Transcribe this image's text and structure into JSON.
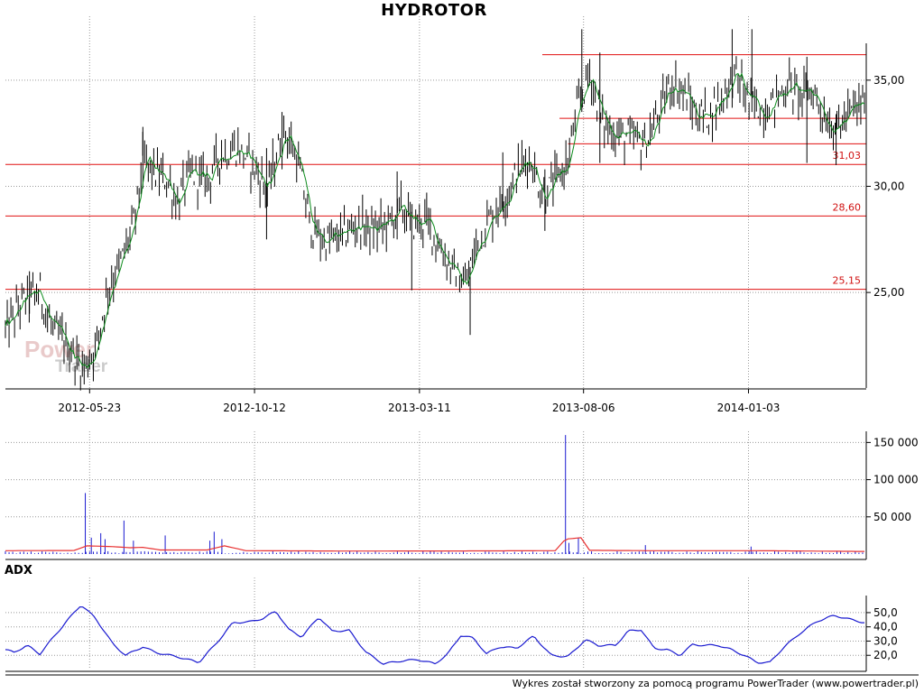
{
  "app": {
    "footer": "Wykres został stworzony za pomocą programu PowerTrader (www.powertrader.pl)",
    "watermark_line1": "Power",
    "watermark_line2": "Trader"
  },
  "chart_data": [
    {
      "type": "line",
      "title": "HYDROTOR",
      "x_dates": [
        "2012-05-23",
        "2012-10-12",
        "2013-03-11",
        "2013-08-06",
        "2014-01-03"
      ],
      "ylim": [
        20.5,
        37.5
      ],
      "yticks": [
        25.0,
        30.0,
        35.0
      ],
      "ytick_labels": [
        "25,00",
        "30,00",
        "35,00"
      ],
      "grid": true,
      "levels": [
        {
          "value": 31.03,
          "label": "31,03",
          "from_frac": 0.0
        },
        {
          "value": 28.6,
          "label": "28,60",
          "from_frac": 0.0
        },
        {
          "value": 25.15,
          "label": "25,15",
          "from_frac": 0.0
        },
        {
          "value": 36.2,
          "label": "",
          "from_frac": 0.625
        },
        {
          "value": 33.2,
          "label": "",
          "from_frac": 0.645
        },
        {
          "value": 32.0,
          "label": "",
          "from_frac": 0.655
        }
      ],
      "series": [
        {
          "price_anchors": [
            [
              0.0,
              23.2
            ],
            [
              0.02,
              24.6
            ],
            [
              0.04,
              25.0
            ],
            [
              0.055,
              23.2
            ],
            [
              0.07,
              22.6
            ],
            [
              0.09,
              21.4
            ],
            [
              0.105,
              22.4
            ],
            [
              0.12,
              25.3
            ],
            [
              0.135,
              26.5
            ],
            [
              0.15,
              28.3
            ],
            [
              0.16,
              31.2
            ],
            [
              0.175,
              30.6
            ],
            [
              0.19,
              30.2
            ],
            [
              0.2,
              29.2
            ],
            [
              0.215,
              30.6
            ],
            [
              0.235,
              30.3
            ],
            [
              0.25,
              31.5
            ],
            [
              0.27,
              31.8
            ],
            [
              0.29,
              30.9
            ],
            [
              0.305,
              29.8
            ],
            [
              0.315,
              31.4
            ],
            [
              0.325,
              32.7
            ],
            [
              0.34,
              31.2
            ],
            [
              0.355,
              28.1
            ],
            [
              0.37,
              27.4
            ],
            [
              0.39,
              27.6
            ],
            [
              0.41,
              28.2
            ],
            [
              0.43,
              27.9
            ],
            [
              0.45,
              28.4
            ],
            [
              0.46,
              29.0
            ],
            [
              0.475,
              28.2
            ],
            [
              0.49,
              28.4
            ],
            [
              0.505,
              27.2
            ],
            [
              0.52,
              26.1
            ],
            [
              0.535,
              25.3
            ],
            [
              0.55,
              27.4
            ],
            [
              0.565,
              28.6
            ],
            [
              0.58,
              29.4
            ],
            [
              0.595,
              30.6
            ],
            [
              0.61,
              31.4
            ],
            [
              0.625,
              29.6
            ],
            [
              0.64,
              30.2
            ],
            [
              0.655,
              31.2
            ],
            [
              0.665,
              33.5
            ],
            [
              0.68,
              35.4
            ],
            [
              0.695,
              33.0
            ],
            [
              0.71,
              32.5
            ],
            [
              0.725,
              32.3
            ],
            [
              0.745,
              32.0
            ],
            [
              0.76,
              33.3
            ],
            [
              0.775,
              34.9
            ],
            [
              0.79,
              34.4
            ],
            [
              0.805,
              33.3
            ],
            [
              0.82,
              33.4
            ],
            [
              0.835,
              34.3
            ],
            [
              0.85,
              35.3
            ],
            [
              0.865,
              34.0
            ],
            [
              0.88,
              33.6
            ],
            [
              0.895,
              34.0
            ],
            [
              0.91,
              34.8
            ],
            [
              0.925,
              34.3
            ],
            [
              0.94,
              34.5
            ],
            [
              0.955,
              33.2
            ],
            [
              0.968,
              32.7
            ],
            [
              0.982,
              33.4
            ],
            [
              1.0,
              34.0
            ]
          ],
          "spikes": [
            {
              "frac": 0.028,
              "high": 26.0,
              "low": 24.0
            },
            {
              "frac": 0.16,
              "high": 32.8,
              "low": 29.9
            },
            {
              "frac": 0.304,
              "high": 31.8,
              "low": 27.5
            },
            {
              "frac": 0.322,
              "high": 33.5,
              "low": 30.8
            },
            {
              "frac": 0.456,
              "high": 30.7,
              "low": 27.5
            },
            {
              "frac": 0.473,
              "high": 28.8,
              "low": 25.1
            },
            {
              "frac": 0.541,
              "high": 26.2,
              "low": 23.0
            },
            {
              "frac": 0.579,
              "high": 31.6,
              "low": 28.8
            },
            {
              "frac": 0.628,
              "high": 30.8,
              "low": 27.9
            },
            {
              "frac": 0.671,
              "high": 37.8,
              "low": 33.5
            },
            {
              "frac": 0.692,
              "high": 36.3,
              "low": 31.1
            },
            {
              "frac": 0.846,
              "high": 37.8,
              "low": 33.7
            },
            {
              "frac": 0.869,
              "high": 38.0,
              "low": 33.5
            },
            {
              "frac": 0.933,
              "high": 36.1,
              "low": 31.1
            },
            {
              "frac": 0.967,
              "high": 33.4,
              "low": 31.0
            }
          ]
        }
      ]
    },
    {
      "type": "bar",
      "title": "",
      "ylim": [
        0,
        165000
      ],
      "yticks": [
        50000,
        100000,
        150000
      ],
      "ytick_labels": [
        "50 000",
        "100 000",
        "150 000"
      ],
      "series": [
        {
          "volume_spikes": [
            {
              "frac": 0.093,
              "value": 82000
            },
            {
              "frac": 0.1,
              "value": 22000
            },
            {
              "frac": 0.111,
              "value": 28000
            },
            {
              "frac": 0.116,
              "value": 20000
            },
            {
              "frac": 0.138,
              "value": 45000
            },
            {
              "frac": 0.149,
              "value": 18000
            },
            {
              "frac": 0.186,
              "value": 25000
            },
            {
              "frac": 0.238,
              "value": 18000
            },
            {
              "frac": 0.243,
              "value": 30000
            },
            {
              "frac": 0.252,
              "value": 20000
            },
            {
              "frac": 0.652,
              "value": 160000
            },
            {
              "frac": 0.656,
              "value": 15000
            },
            {
              "frac": 0.667,
              "value": 22000
            },
            {
              "frac": 0.745,
              "value": 12000
            },
            {
              "frac": 0.868,
              "value": 10000
            }
          ],
          "base_volume": 2500
        },
        {
          "ma_volume_anchors": [
            [
              0.0,
              4500
            ],
            [
              0.08,
              4800
            ],
            [
              0.095,
              11000
            ],
            [
              0.125,
              10000
            ],
            [
              0.145,
              8500
            ],
            [
              0.16,
              9000
            ],
            [
              0.18,
              5500
            ],
            [
              0.235,
              5500
            ],
            [
              0.255,
              11000
            ],
            [
              0.28,
              4500
            ],
            [
              0.4,
              4000
            ],
            [
              0.55,
              4200
            ],
            [
              0.64,
              4500
            ],
            [
              0.652,
              20000
            ],
            [
              0.67,
              22000
            ],
            [
              0.68,
              5000
            ],
            [
              0.75,
              4500
            ],
            [
              0.87,
              4500
            ],
            [
              1.0,
              3500
            ]
          ]
        }
      ]
    },
    {
      "type": "line",
      "title": "ADX",
      "ylim": [
        10,
        62
      ],
      "yticks": [
        20.0,
        30.0,
        40.0,
        50.0
      ],
      "ytick_labels": [
        "20,0",
        "30,0",
        "40,0",
        "50,0"
      ],
      "series": [
        {
          "adx_anchors": [
            [
              0.0,
              24.0
            ],
            [
              0.01,
              22.0
            ],
            [
              0.025,
              27.0
            ],
            [
              0.04,
              21.0
            ],
            [
              0.055,
              32.0
            ],
            [
              0.07,
              43.0
            ],
            [
              0.088,
              55.5
            ],
            [
              0.105,
              46.0
            ],
            [
              0.125,
              28.0
            ],
            [
              0.14,
              20.0
            ],
            [
              0.16,
              26.0
            ],
            [
              0.175,
              22.0
            ],
            [
              0.2,
              19.0
            ],
            [
              0.225,
              15.0
            ],
            [
              0.245,
              28.0
            ],
            [
              0.265,
              43.0
            ],
            [
              0.285,
              43.5
            ],
            [
              0.3,
              46.0
            ],
            [
              0.315,
              51.0
            ],
            [
              0.33,
              38.0
            ],
            [
              0.345,
              33.0
            ],
            [
              0.365,
              47.0
            ],
            [
              0.38,
              37.0
            ],
            [
              0.4,
              37.5
            ],
            [
              0.42,
              22.0
            ],
            [
              0.44,
              14.0
            ],
            [
              0.46,
              16.0
            ],
            [
              0.48,
              17.0
            ],
            [
              0.5,
              14.0
            ],
            [
              0.515,
              21.0
            ],
            [
              0.53,
              34.0
            ],
            [
              0.545,
              32.0
            ],
            [
              0.56,
              21.0
            ],
            [
              0.575,
              26.0
            ],
            [
              0.595,
              25.0
            ],
            [
              0.615,
              33.5
            ],
            [
              0.635,
              20.0
            ],
            [
              0.655,
              19.0
            ],
            [
              0.675,
              31.0
            ],
            [
              0.69,
              27.0
            ],
            [
              0.71,
              27.0
            ],
            [
              0.725,
              37.0
            ],
            [
              0.74,
              38.0
            ],
            [
              0.755,
              25.0
            ],
            [
              0.77,
              24.0
            ],
            [
              0.785,
              20.0
            ],
            [
              0.8,
              27.5
            ],
            [
              0.815,
              27.0
            ],
            [
              0.83,
              27.0
            ],
            [
              0.845,
              24.0
            ],
            [
              0.86,
              20.0
            ],
            [
              0.875,
              15.0
            ],
            [
              0.89,
              15.0
            ],
            [
              0.905,
              25.0
            ],
            [
              0.925,
              35.5
            ],
            [
              0.945,
              44.0
            ],
            [
              0.965,
              48.0
            ],
            [
              0.985,
              45.0
            ],
            [
              1.0,
              43.0
            ]
          ]
        }
      ]
    }
  ]
}
